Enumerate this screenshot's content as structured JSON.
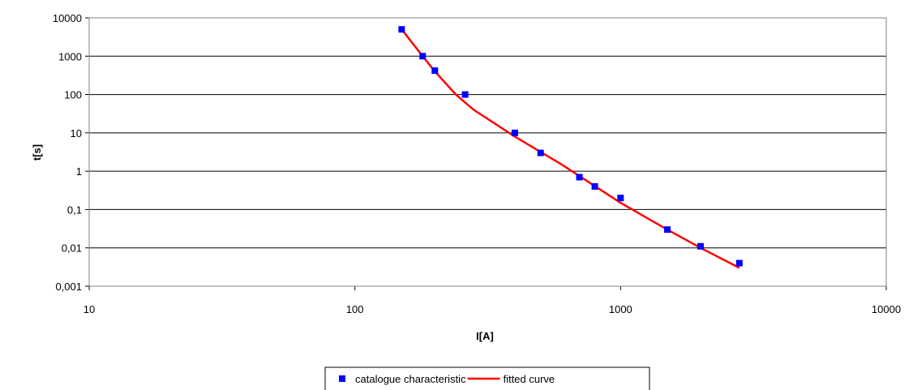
{
  "chart_data": {
    "type": "scatter",
    "x_label": "I[A]",
    "y_label": "t[s]",
    "xscale": "log",
    "yscale": "log",
    "xlim": [
      10,
      10000
    ],
    "xticks": [
      10,
      100,
      1000,
      10000
    ],
    "ylim": [
      0.001,
      10000
    ],
    "yticks": [
      {
        "value": 0.001,
        "label": "0,001"
      },
      {
        "value": 0.01,
        "label": "0,01"
      },
      {
        "value": 0.1,
        "label": "0,1"
      },
      1,
      10,
      100,
      1000,
      10000
    ],
    "grid": "y",
    "legend": "bottom",
    "series": [
      {
        "name": "catalogue characteristic",
        "type": "scatter",
        "color": "#0000ff",
        "x": [
          150,
          180,
          200,
          260,
          400,
          500,
          700,
          800,
          1000,
          1500,
          2000,
          2800
        ],
        "values": [
          5000,
          1000,
          420,
          100,
          10,
          3,
          0.7,
          0.4,
          0.2,
          0.03,
          0.011,
          0.004
        ]
      },
      {
        "name": "fitted curve",
        "type": "line",
        "color": "#ff0000",
        "x": [
          150,
          180,
          200,
          240,
          280,
          400,
          600,
          1000,
          1500,
          2000,
          2800
        ],
        "values": [
          5000,
          1000,
          400,
          100,
          40,
          8,
          1.5,
          0.15,
          0.03,
          0.01,
          0.003
        ]
      }
    ]
  }
}
